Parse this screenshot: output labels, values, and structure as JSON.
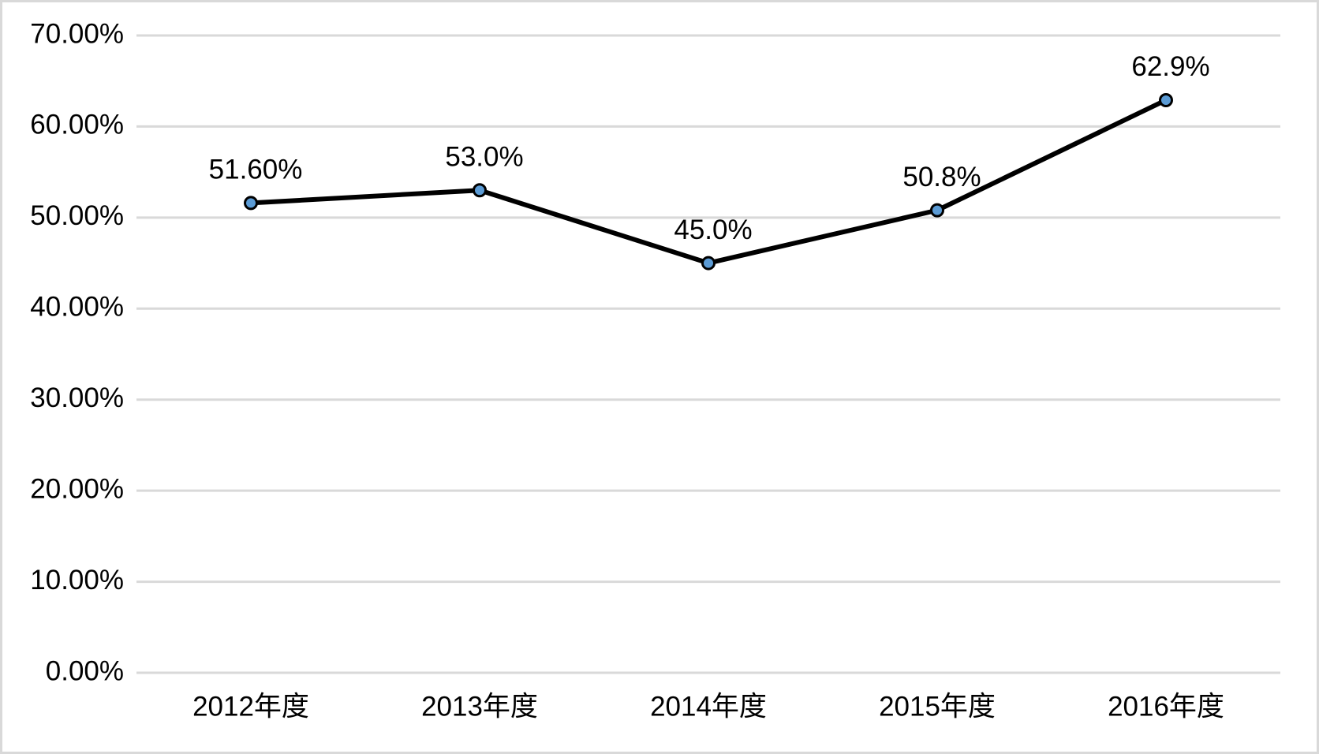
{
  "chart_data": {
    "type": "line",
    "categories": [
      "2012年度",
      "2013年度",
      "2014年度",
      "2015年度",
      "2016年度"
    ],
    "values": [
      51.6,
      53.0,
      45.0,
      50.8,
      62.9
    ],
    "value_labels": [
      "51.60%",
      "53.0%",
      "45.0%",
      "50.8%",
      "62.9%"
    ],
    "color": "#000000",
    "marker_color": "#5b9bd5",
    "ylim": [
      0,
      70
    ],
    "yticks": [
      {
        "value": 0,
        "label": "0.00%"
      },
      {
        "value": 10,
        "label": "10.00%"
      },
      {
        "value": 20,
        "label": "20.00%"
      },
      {
        "value": 30,
        "label": "30.00%"
      },
      {
        "value": 40,
        "label": "40.00%"
      },
      {
        "value": 50,
        "label": "50.00%"
      },
      {
        "value": 60,
        "label": "60.00%"
      },
      {
        "value": 70,
        "label": "70.00%"
      }
    ],
    "grid": true
  }
}
